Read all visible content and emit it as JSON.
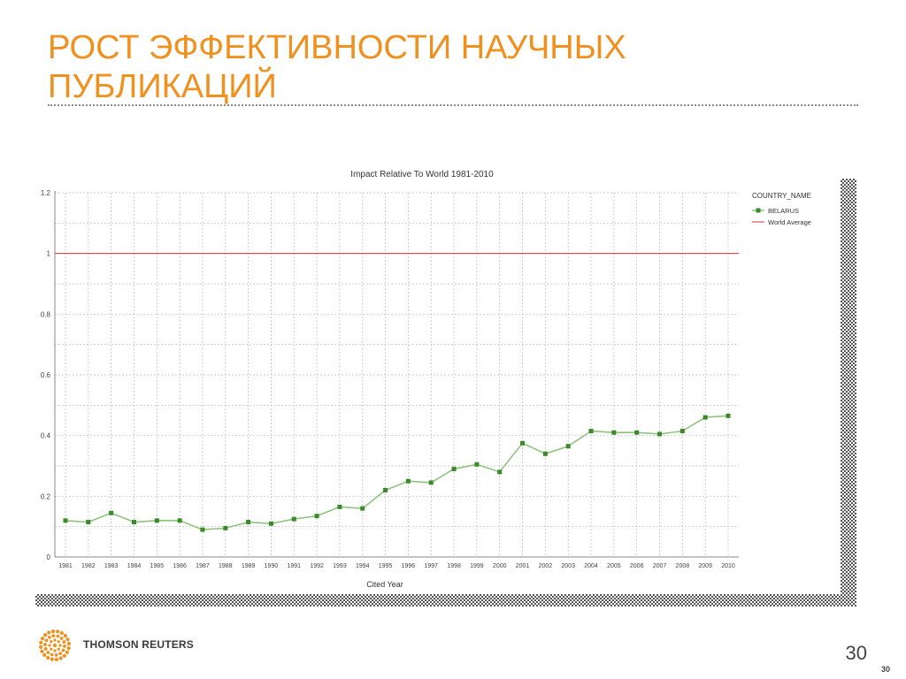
{
  "slide": {
    "title_line1": "РОСТ ЭФФЕКТИВНОСТИ НАУЧНЫХ",
    "title_line2": "ПУБЛИКАЦИЙ",
    "page_number": "30",
    "page_number_small": "30",
    "logo_text": "THOMSON REUTERS",
    "accent_color": "#f0901e"
  },
  "chart_data": {
    "type": "line",
    "title": "Impact Relative To World 1981-2010",
    "xlabel": "Cited Year",
    "ylabel": "",
    "legend_title": "COUNTRY_NAME",
    "legend_position": "top-right",
    "grid": true,
    "x": [
      "1981",
      "1982",
      "1983",
      "1984",
      "1985",
      "1986",
      "1987",
      "1988",
      "1989",
      "1990",
      "1991",
      "1992",
      "1993",
      "1994",
      "1995",
      "1996",
      "1997",
      "1998",
      "1999",
      "2000",
      "2001",
      "2002",
      "2003",
      "2004",
      "2005",
      "2006",
      "2007",
      "2008",
      "2009",
      "2010"
    ],
    "ylim": [
      0,
      1.2
    ],
    "yticks": [
      "0",
      "0.2",
      "0.4",
      "0.6",
      "0.8",
      "1",
      "1.2"
    ],
    "series": [
      {
        "name": "BELARUS",
        "color": "#3a8a2a",
        "values": [
          0.12,
          0.115,
          0.145,
          0.115,
          0.12,
          0.12,
          0.09,
          0.095,
          0.115,
          0.11,
          0.125,
          0.135,
          0.165,
          0.16,
          0.22,
          0.25,
          0.245,
          0.29,
          0.305,
          0.28,
          0.375,
          0.34,
          0.365,
          0.415,
          0.41,
          0.41,
          0.405,
          0.415,
          0.46,
          0.465
        ]
      },
      {
        "name": "World Average",
        "color": "#e03030",
        "values": [
          1,
          1,
          1,
          1,
          1,
          1,
          1,
          1,
          1,
          1,
          1,
          1,
          1,
          1,
          1,
          1,
          1,
          1,
          1,
          1,
          1,
          1,
          1,
          1,
          1,
          1,
          1,
          1,
          1,
          1
        ]
      }
    ]
  }
}
